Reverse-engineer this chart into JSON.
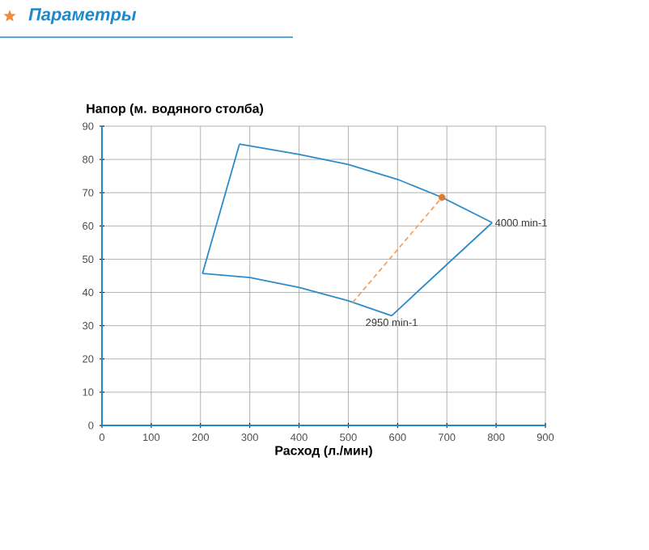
{
  "chart_data": {
    "type": "line",
    "title": "Параметры",
    "xlabel": "Расход (л./мин)",
    "ylabel": "Напор (м. водяного столба)",
    "xlim": [
      0,
      900
    ],
    "xticks": [
      0,
      100,
      200,
      300,
      400,
      500,
      600,
      700,
      800,
      900
    ],
    "ylim": [
      0,
      90
    ],
    "yticks": [
      0,
      10,
      20,
      30,
      40,
      50,
      60,
      70,
      80,
      90
    ],
    "grid": true,
    "series": [
      {
        "type": "line",
        "color": "#2e8bc9",
        "line_style": "solid",
        "marker": "none",
        "x": [
          279,
          400,
          500,
          600,
          690,
          792
        ],
        "values": [
          84.6,
          81.5,
          78.5,
          74,
          68.6,
          61
        ]
      },
      {
        "type": "line",
        "color": "#2e8bc9",
        "line_style": "solid",
        "marker": "none",
        "x": [
          588,
          700,
          792
        ],
        "values": [
          33,
          48.4,
          61
        ]
      },
      {
        "type": "line",
        "color": "#2e8bc9",
        "line_style": "solid",
        "marker": "none",
        "x": [
          204,
          300,
          400,
          500,
          588
        ],
        "values": [
          45.7,
          44.5,
          41.5,
          37.5,
          33
        ]
      },
      {
        "type": "line",
        "color": "#2e8bc9",
        "line_style": "solid",
        "marker": "none",
        "x": [
          204,
          279
        ],
        "values": [
          45.7,
          84.6
        ]
      },
      {
        "type": "line",
        "color": "#f4a261",
        "line_style": "dashed",
        "marker": "none",
        "x": [
          509,
          690
        ],
        "values": [
          37,
          68.6
        ]
      },
      {
        "type": "scatter",
        "color": "#e07b2e",
        "marker": "circle",
        "x": [
          690
        ],
        "values": [
          68.6
        ]
      }
    ],
    "annotations": [
      {
        "text": "4000 min-1",
        "x": 792,
        "y": 61
      },
      {
        "text": "2950 min-1",
        "x": 588,
        "y": 33
      }
    ]
  }
}
